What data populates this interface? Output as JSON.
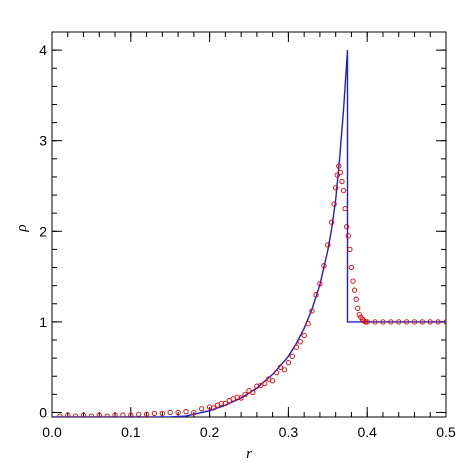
{
  "chart_data": {
    "type": "scatter",
    "xlabel": "r",
    "ylabel": "ρ",
    "xlim": [
      0.0,
      0.5
    ],
    "ylim": [
      -0.05,
      4.2
    ],
    "grid": false,
    "x_ticks": [
      0.0,
      0.1,
      0.2,
      0.3,
      0.4,
      0.5
    ],
    "x_tick_labels": [
      "0.0",
      "0.1",
      "0.2",
      "0.3",
      "0.4",
      "0.5"
    ],
    "y_ticks": [
      0,
      1,
      2,
      3,
      4
    ],
    "y_tick_labels": [
      "0",
      "1",
      "2",
      "3",
      "4"
    ],
    "series": [
      {
        "kind": "line",
        "color": "#2020c8",
        "x": [
          0.0,
          0.05,
          0.1,
          0.15,
          0.17,
          0.2,
          0.22,
          0.24,
          0.26,
          0.28,
          0.3,
          0.31,
          0.32,
          0.33,
          0.34,
          0.35,
          0.355,
          0.36,
          0.365,
          0.37,
          0.375,
          0.375,
          0.5
        ],
        "y": [
          -0.05,
          -0.05,
          -0.05,
          -0.05,
          -0.04,
          0.02,
          0.08,
          0.16,
          0.27,
          0.42,
          0.62,
          0.76,
          0.93,
          1.14,
          1.41,
          1.79,
          2.03,
          2.35,
          2.8,
          3.35,
          4.0,
          1.0,
          1.0
        ]
      },
      {
        "kind": "scatter",
        "color": "#e00000",
        "x": [
          0.01,
          0.02,
          0.03,
          0.04,
          0.05,
          0.06,
          0.07,
          0.08,
          0.09,
          0.1,
          0.11,
          0.12,
          0.13,
          0.14,
          0.15,
          0.16,
          0.17,
          0.18,
          0.19,
          0.2,
          0.205,
          0.21,
          0.215,
          0.22,
          0.225,
          0.23,
          0.235,
          0.24,
          0.245,
          0.25,
          0.255,
          0.26,
          0.265,
          0.27,
          0.275,
          0.28,
          0.285,
          0.29,
          0.295,
          0.3,
          0.305,
          0.31,
          0.315,
          0.32,
          0.325,
          0.33,
          0.335,
          0.34,
          0.345,
          0.35,
          0.355,
          0.358,
          0.36,
          0.362,
          0.364,
          0.366,
          0.368,
          0.37,
          0.372,
          0.374,
          0.376,
          0.378,
          0.38,
          0.382,
          0.384,
          0.386,
          0.388,
          0.39,
          0.392,
          0.394,
          0.396,
          0.398,
          0.4,
          0.41,
          0.42,
          0.43,
          0.44,
          0.45,
          0.46,
          0.47,
          0.48,
          0.49,
          0.5
        ],
        "y": [
          -0.04,
          -0.03,
          -0.04,
          -0.03,
          -0.04,
          -0.03,
          -0.04,
          -0.03,
          -0.03,
          -0.03,
          -0.02,
          -0.02,
          -0.01,
          -0.01,
          0.0,
          0.0,
          0.01,
          0.0,
          0.04,
          0.06,
          0.05,
          0.08,
          0.1,
          0.1,
          0.13,
          0.15,
          0.17,
          0.16,
          0.2,
          0.24,
          0.22,
          0.29,
          0.3,
          0.32,
          0.37,
          0.35,
          0.44,
          0.5,
          0.47,
          0.55,
          0.62,
          0.72,
          0.78,
          0.85,
          0.98,
          1.12,
          1.3,
          1.42,
          1.62,
          1.85,
          2.1,
          2.3,
          2.48,
          2.62,
          2.72,
          2.65,
          2.55,
          2.45,
          2.25,
          2.05,
          1.95,
          1.8,
          1.6,
          1.45,
          1.35,
          1.25,
          1.15,
          1.08,
          1.05,
          1.03,
          1.01,
          1.0,
          1.0,
          1.0,
          1.0,
          1.0,
          1.0,
          1.0,
          1.0,
          1.0,
          1.0,
          1.0,
          1.0
        ]
      }
    ]
  }
}
